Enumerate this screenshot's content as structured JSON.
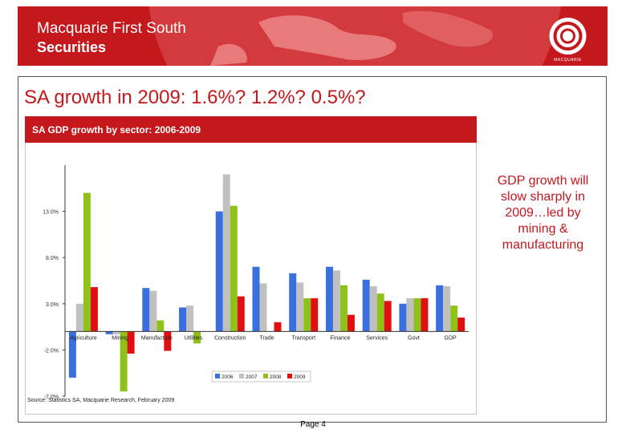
{
  "colors": {
    "brand_red": "#c4181d",
    "series": [
      "#3a6fe0",
      "#c0c0c0",
      "#8ec21a",
      "#e01010"
    ]
  },
  "header": {
    "brand_line1": "Macquarie First South",
    "brand_line2": "Securities",
    "logo_word": "MACQUARIE"
  },
  "slide": {
    "title": "SA growth in 2009:  1.6%?  1.2%?  0.5%?",
    "callout": "GDP growth will slow sharply in 2009…led by mining & manufacturing",
    "page_label": "Page 4"
  },
  "chart": {
    "source": "Source: Statistics SA, Macquarie Research, February 2009"
  },
  "chart_data": {
    "type": "bar",
    "title": "SA GDP growth by sector:  2006-2009",
    "xlabel": "",
    "ylabel": "",
    "categories": [
      "Agriculture",
      "Mining",
      "Manufacture",
      "Utilities",
      "Construction",
      "Trade",
      "Transport",
      "Finance",
      "Services",
      "Govt",
      "GDP"
    ],
    "ylim": [
      -7,
      18
    ],
    "ytick_values": [
      -7,
      -2,
      3,
      8,
      13
    ],
    "ytick_labels": [
      "-7.0%",
      "-2.0%",
      "3.0%",
      "8.0%",
      "13.0%"
    ],
    "legend_position": "bottom-right",
    "grid": false,
    "series": [
      {
        "name": "2006",
        "values": [
          -5.0,
          -0.3,
          4.7,
          2.6,
          13.0,
          7.0,
          6.3,
          7.0,
          5.6,
          3.0,
          5.0
        ]
      },
      {
        "name": "2007",
        "values": [
          3.0,
          -0.3,
          4.4,
          2.8,
          17.0,
          5.2,
          5.3,
          6.6,
          4.9,
          3.6,
          4.9
        ]
      },
      {
        "name": "2008",
        "values": [
          15.0,
          -6.5,
          1.2,
          -1.3,
          13.6,
          0.0,
          3.6,
          5.0,
          4.1,
          3.6,
          2.8
        ]
      },
      {
        "name": "2009",
        "values": [
          4.8,
          -2.4,
          -2.1,
          0.0,
          3.8,
          1.0,
          3.6,
          1.8,
          3.3,
          3.6,
          1.5
        ]
      }
    ]
  }
}
